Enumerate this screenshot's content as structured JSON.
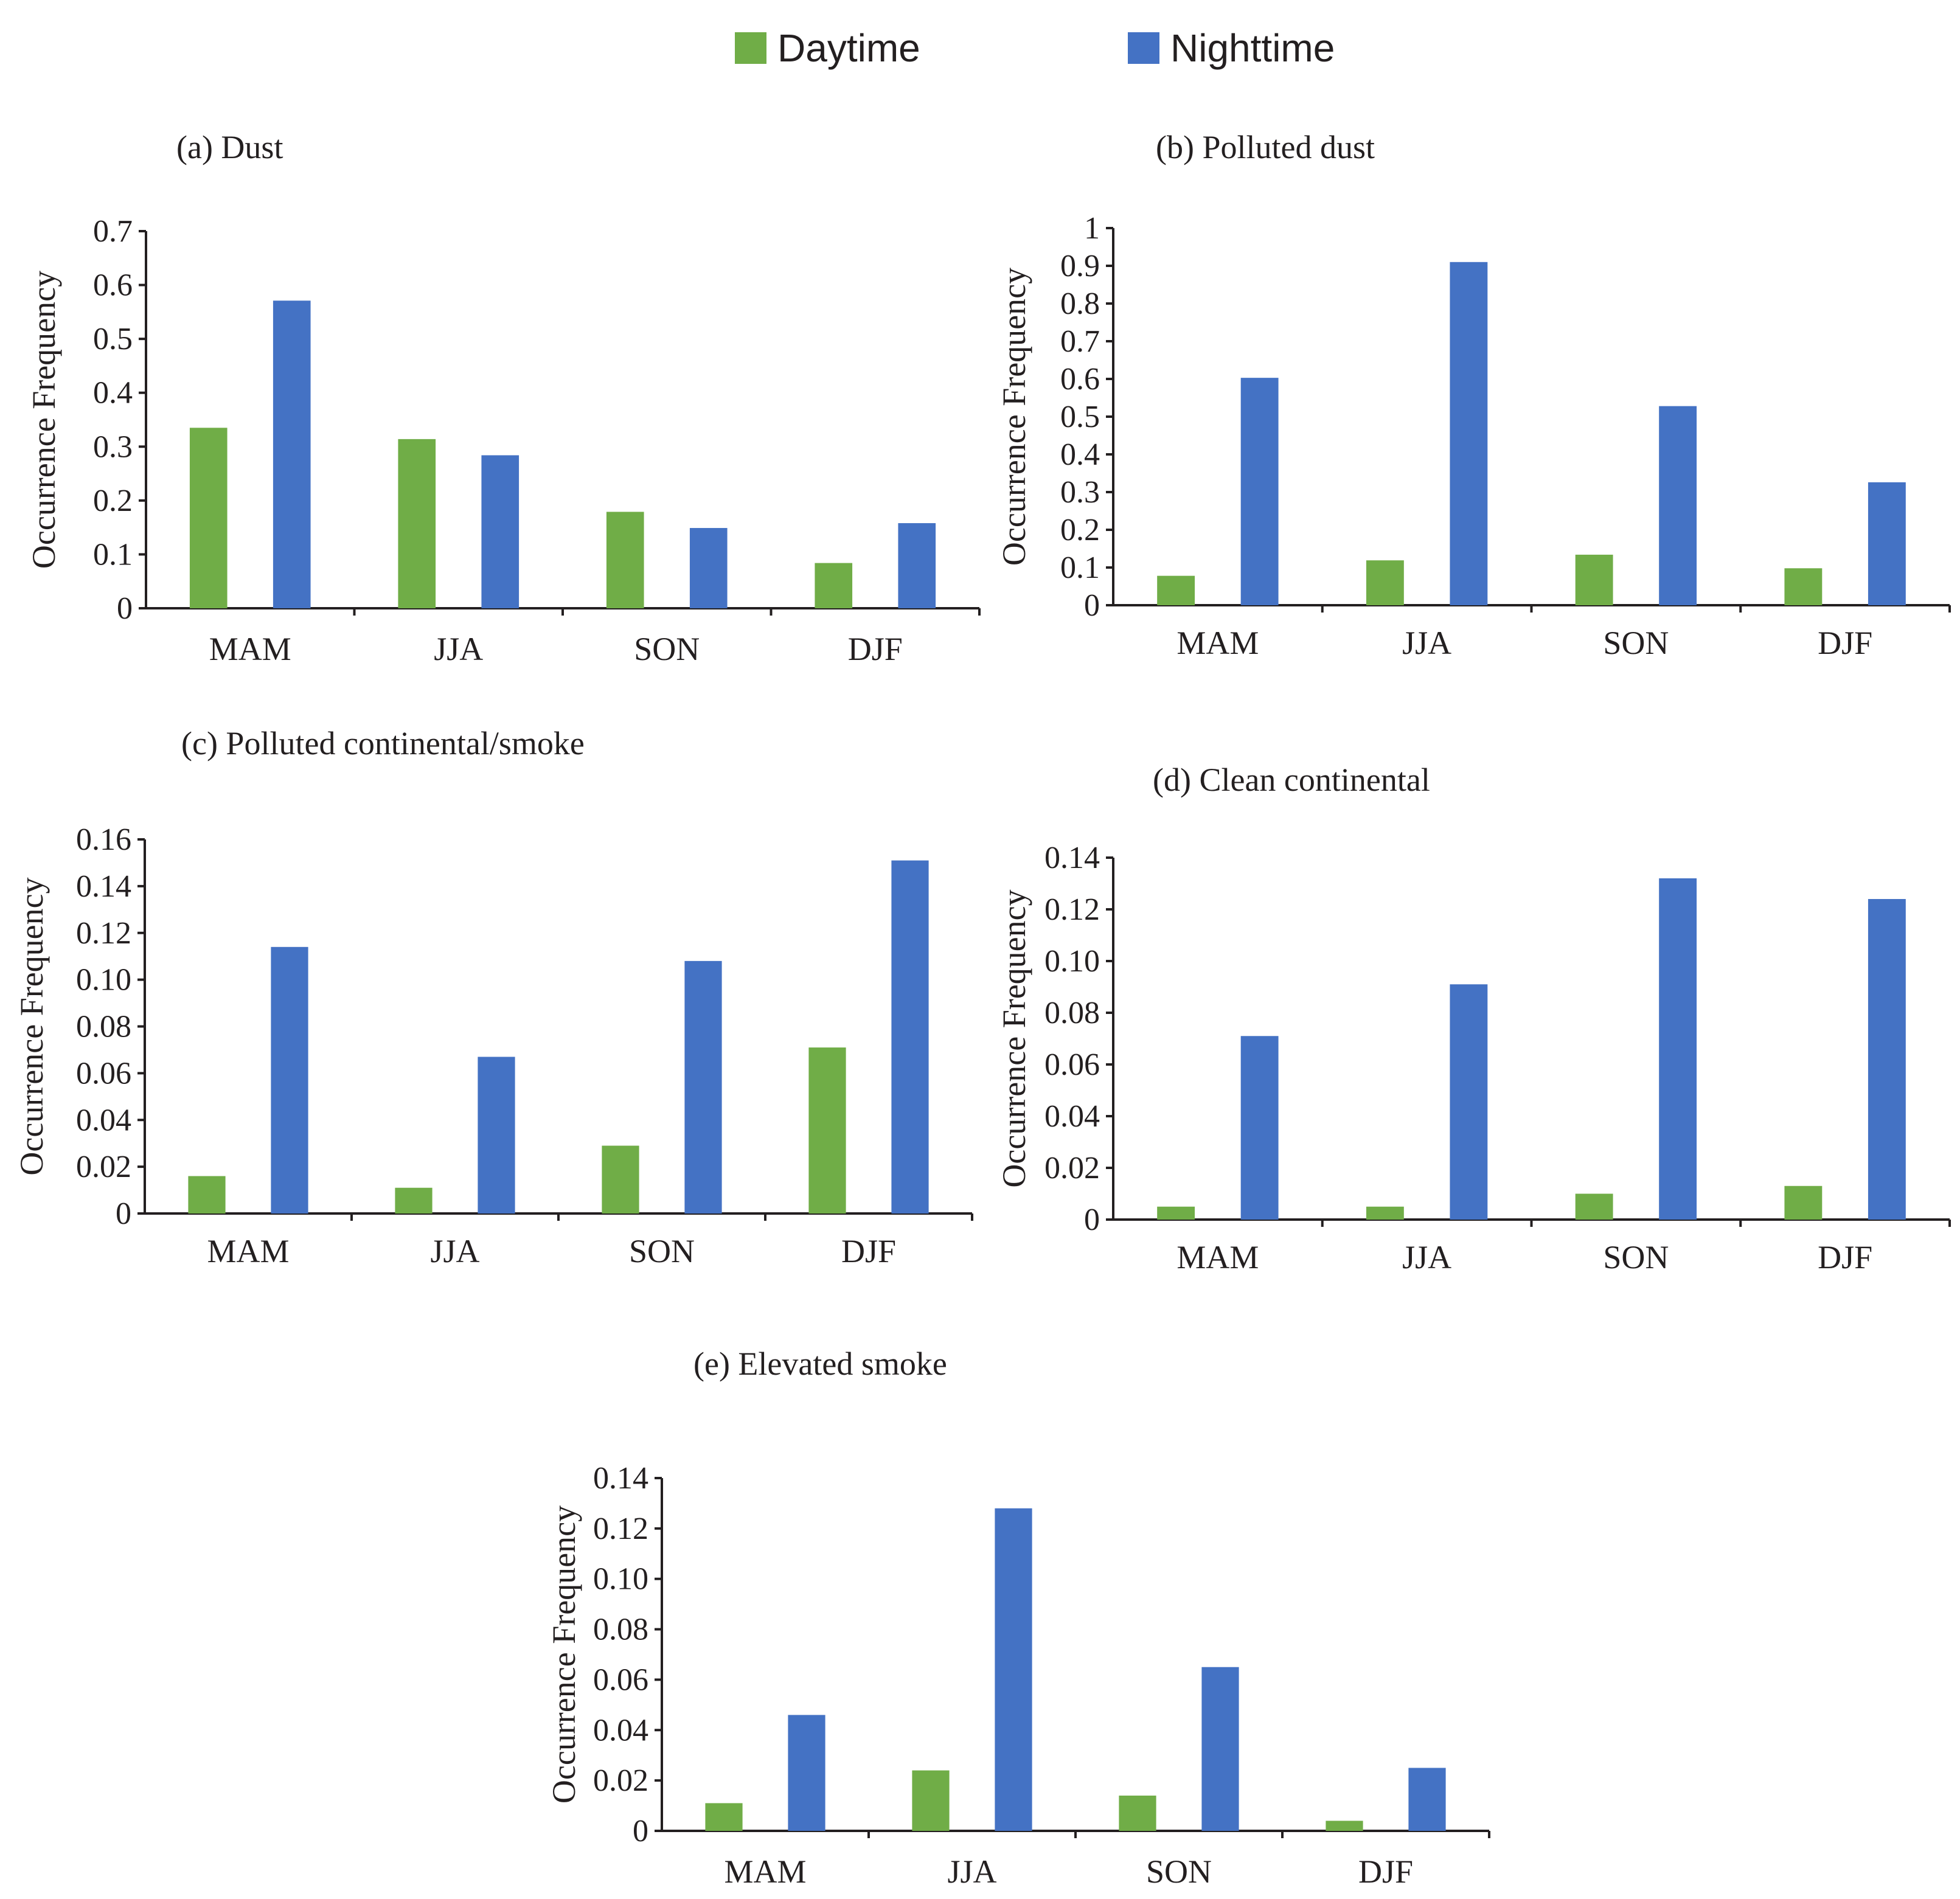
{
  "legend": {
    "day_label": "Daytime",
    "night_label": "Nighttime",
    "day_color": "#70ad47",
    "night_color": "#4472c4"
  },
  "chart_data": [
    {
      "type": "bar",
      "title": "(a) Dust",
      "ylabel": "Occurrence Frequency",
      "xlabel": "",
      "categories": [
        "MAM",
        "JJA",
        "SON",
        "DJF"
      ],
      "ylim": [
        0,
        0.7
      ],
      "yticks": [
        "0",
        "0.1",
        "0.2",
        "0.3",
        "0.4",
        "0.5",
        "0.6",
        "0.7"
      ],
      "series": [
        {
          "name": "Daytime",
          "values": [
            0.335,
            0.314,
            0.179,
            0.084
          ]
        },
        {
          "name": "Nighttime",
          "values": [
            0.571,
            0.284,
            0.149,
            0.158
          ]
        }
      ]
    },
    {
      "type": "bar",
      "title": "(b) Polluted dust",
      "ylabel": "Occurrence Frequency",
      "xlabel": "",
      "categories": [
        "MAM",
        "JJA",
        "SON",
        "DJF"
      ],
      "ylim": [
        0,
        1
      ],
      "yticks": [
        "0",
        "0.1",
        "0.2",
        "0.3",
        "0.4",
        "0.5",
        "0.6",
        "0.7",
        "0.8",
        "0.9",
        "1"
      ],
      "series": [
        {
          "name": "Daytime",
          "values": [
            0.078,
            0.119,
            0.134,
            0.098
          ]
        },
        {
          "name": "Nighttime",
          "values": [
            0.603,
            0.91,
            0.528,
            0.326
          ]
        }
      ]
    },
    {
      "type": "bar",
      "title": "(c) Polluted continental/smoke",
      "ylabel": "Occurrence Frequency",
      "xlabel": "",
      "categories": [
        "MAM",
        "JJA",
        "SON",
        "DJF"
      ],
      "ylim": [
        0,
        0.16
      ],
      "yticks": [
        "0",
        "0.02",
        "0.04",
        "0.06",
        "0.08",
        "0.10",
        "0.12",
        "0.14",
        "0.16"
      ],
      "series": [
        {
          "name": "Daytime",
          "values": [
            0.016,
            0.011,
            0.029,
            0.071
          ]
        },
        {
          "name": "Nighttime",
          "values": [
            0.114,
            0.067,
            0.108,
            0.151
          ]
        }
      ]
    },
    {
      "type": "bar",
      "title": "(d) Clean continental",
      "ylabel": "Occurrence Frequency",
      "xlabel": "",
      "categories": [
        "MAM",
        "JJA",
        "SON",
        "DJF"
      ],
      "ylim": [
        0,
        0.14
      ],
      "yticks": [
        "0",
        "0.02",
        "0.04",
        "0.06",
        "0.08",
        "0.10",
        "0.12",
        "0.14"
      ],
      "series": [
        {
          "name": "Daytime",
          "values": [
            0.005,
            0.005,
            0.01,
            0.013
          ]
        },
        {
          "name": "Nighttime",
          "values": [
            0.071,
            0.091,
            0.132,
            0.124
          ]
        }
      ]
    },
    {
      "type": "bar",
      "title": "(e) Elevated smoke",
      "ylabel": "Occurrence Frequency",
      "xlabel": "",
      "categories": [
        "MAM",
        "JJA",
        "SON",
        "DJF"
      ],
      "ylim": [
        0,
        0.14
      ],
      "yticks": [
        "0",
        "0.02",
        "0.04",
        "0.06",
        "0.08",
        "0.10",
        "0.12",
        "0.14"
      ],
      "series": [
        {
          "name": "Daytime",
          "values": [
            0.011,
            0.024,
            0.014,
            0.004
          ]
        },
        {
          "name": "Nighttime",
          "values": [
            0.046,
            0.128,
            0.065,
            0.025
          ]
        }
      ]
    }
  ]
}
